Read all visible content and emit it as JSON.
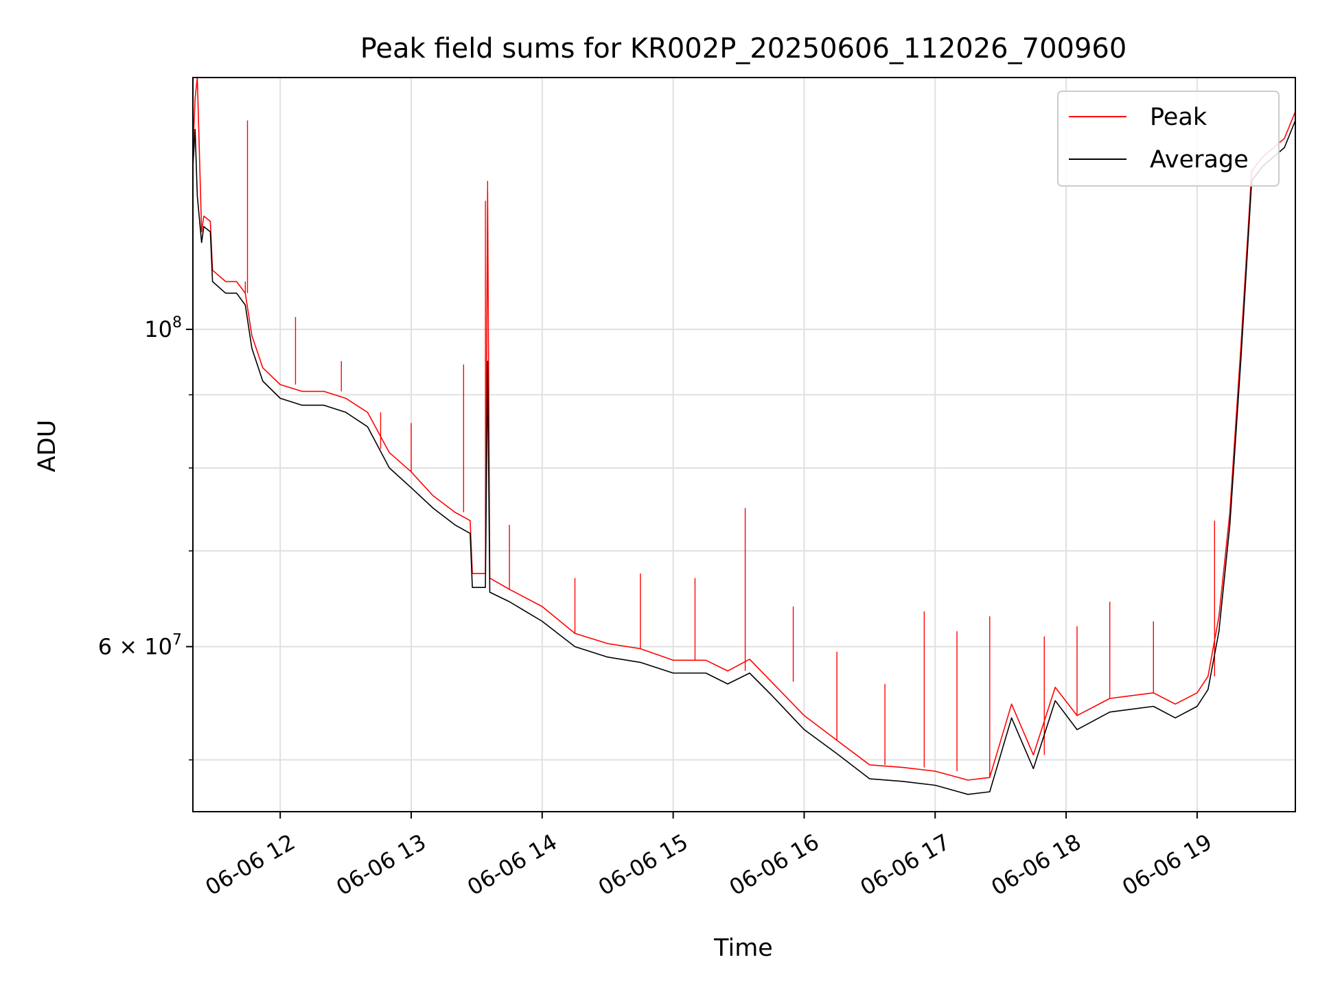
{
  "chart_data": {
    "type": "line",
    "title": "Peak field sums for KR002P_20250606_112026_700960",
    "xlabel": "Time",
    "ylabel": "ADU",
    "y_scale": "log",
    "xlim": [
      "2025-06-06T11:20",
      "2025-06-06T19:45"
    ],
    "ylim": [
      46000000,
      150000000
    ],
    "x_ticks": [
      {
        "label": "06-06 12",
        "time": "2025-06-06T12:00"
      },
      {
        "label": "06-06 13",
        "time": "2025-06-06T13:00"
      },
      {
        "label": "06-06 14",
        "time": "2025-06-06T14:00"
      },
      {
        "label": "06-06 15",
        "time": "2025-06-06T15:00"
      },
      {
        "label": "06-06 16",
        "time": "2025-06-06T16:00"
      },
      {
        "label": "06-06 17",
        "time": "2025-06-06T17:00"
      },
      {
        "label": "06-06 18",
        "time": "2025-06-06T18:00"
      },
      {
        "label": "06-06 19",
        "time": "2025-06-06T19:00"
      }
    ],
    "y_ticks_major": [
      {
        "base": "10",
        "exp": "8",
        "mantissa": "",
        "value": 100000000
      },
      {
        "base": "10",
        "exp": "7",
        "mantissa": "6",
        "value": 60000000
      }
    ],
    "y_ticks_minor": [
      50000000,
      70000000,
      80000000,
      90000000
    ],
    "grid": true,
    "legend_position": "top-right",
    "series": [
      {
        "name": "Average",
        "color": "#000000",
        "points": [
          [
            "2025-06-06T11:20",
            130000000
          ],
          [
            "2025-06-06T11:21",
            138000000
          ],
          [
            "2025-06-06T11:22",
            124000000
          ],
          [
            "2025-06-06T11:24",
            115000000
          ],
          [
            "2025-06-06T11:25",
            118000000
          ],
          [
            "2025-06-06T11:28",
            117000000
          ],
          [
            "2025-06-06T11:29",
            108000000
          ],
          [
            "2025-06-06T11:35",
            106000000
          ],
          [
            "2025-06-06T11:40",
            106000000
          ],
          [
            "2025-06-06T11:44",
            104000000
          ],
          [
            "2025-06-06T11:47",
            97000000
          ],
          [
            "2025-06-06T11:52",
            92000000
          ],
          [
            "2025-06-06T12:00",
            89500000
          ],
          [
            "2025-06-06T12:10",
            88500000
          ],
          [
            "2025-06-06T12:20",
            88500000
          ],
          [
            "2025-06-06T12:30",
            87500000
          ],
          [
            "2025-06-06T12:40",
            85500000
          ],
          [
            "2025-06-06T12:50",
            80000000
          ],
          [
            "2025-06-06T13:00",
            77500000
          ],
          [
            "2025-06-06T13:10",
            75000000
          ],
          [
            "2025-06-06T13:20",
            73000000
          ],
          [
            "2025-06-06T13:27",
            72000000
          ],
          [
            "2025-06-06T13:28",
            66000000
          ],
          [
            "2025-06-06T13:34",
            66000000
          ],
          [
            "2025-06-06T13:35",
            95000000
          ],
          [
            "2025-06-06T13:36",
            65500000
          ],
          [
            "2025-06-06T13:45",
            64500000
          ],
          [
            "2025-06-06T14:00",
            62500000
          ],
          [
            "2025-06-06T14:15",
            60000000
          ],
          [
            "2025-06-06T14:30",
            59000000
          ],
          [
            "2025-06-06T14:45",
            58500000
          ],
          [
            "2025-06-06T15:00",
            57500000
          ],
          [
            "2025-06-06T15:15",
            57500000
          ],
          [
            "2025-06-06T15:25",
            56500000
          ],
          [
            "2025-06-06T15:35",
            57500000
          ],
          [
            "2025-06-06T15:45",
            55500000
          ],
          [
            "2025-06-06T16:00",
            52500000
          ],
          [
            "2025-06-06T16:15",
            50500000
          ],
          [
            "2025-06-06T16:30",
            48500000
          ],
          [
            "2025-06-06T16:45",
            48300000
          ],
          [
            "2025-06-06T17:00",
            48000000
          ],
          [
            "2025-06-06T17:15",
            47300000
          ],
          [
            "2025-06-06T17:25",
            47500000
          ],
          [
            "2025-06-06T17:35",
            53500000
          ],
          [
            "2025-06-06T17:45",
            49300000
          ],
          [
            "2025-06-06T17:55",
            55000000
          ],
          [
            "2025-06-06T18:05",
            52500000
          ],
          [
            "2025-06-06T18:20",
            54000000
          ],
          [
            "2025-06-06T18:40",
            54500000
          ],
          [
            "2025-06-06T18:50",
            53500000
          ],
          [
            "2025-06-06T19:00",
            54500000
          ],
          [
            "2025-06-06T19:05",
            56000000
          ],
          [
            "2025-06-06T19:10",
            61500000
          ],
          [
            "2025-06-06T19:15",
            73000000
          ],
          [
            "2025-06-06T19:20",
            95000000
          ],
          [
            "2025-06-06T19:25",
            127000000
          ],
          [
            "2025-06-06T19:30",
            130000000
          ],
          [
            "2025-06-06T19:40",
            134000000
          ],
          [
            "2025-06-06T19:45",
            140000000
          ]
        ]
      },
      {
        "name": "Peak",
        "color": "#ff0000",
        "points": [
          [
            "2025-06-06T11:20",
            133000000
          ],
          [
            "2025-06-06T11:21",
            145000000
          ],
          [
            "2025-06-06T11:22",
            150000000
          ],
          [
            "2025-06-06T11:24",
            117000000
          ],
          [
            "2025-06-06T11:25",
            120000000
          ],
          [
            "2025-06-06T11:28",
            119000000
          ],
          [
            "2025-06-06T11:29",
            110000000
          ],
          [
            "2025-06-06T11:35",
            108000000
          ],
          [
            "2025-06-06T11:40",
            108000000
          ],
          [
            "2025-06-06T11:44",
            106000000
          ],
          [
            "2025-06-06T11:47",
            99000000
          ],
          [
            "2025-06-06T11:52",
            94000000
          ],
          [
            "2025-06-06T12:00",
            91500000
          ],
          [
            "2025-06-06T12:10",
            90500000
          ],
          [
            "2025-06-06T12:20",
            90500000
          ],
          [
            "2025-06-06T12:30",
            89500000
          ],
          [
            "2025-06-06T12:40",
            87500000
          ],
          [
            "2025-06-06T12:50",
            82000000
          ],
          [
            "2025-06-06T13:00",
            79500000
          ],
          [
            "2025-06-06T13:10",
            76500000
          ],
          [
            "2025-06-06T13:20",
            74500000
          ],
          [
            "2025-06-06T13:27",
            73500000
          ],
          [
            "2025-06-06T13:28",
            67500000
          ],
          [
            "2025-06-06T13:34",
            67500000
          ],
          [
            "2025-06-06T13:35",
            125000000
          ],
          [
            "2025-06-06T13:36",
            67000000
          ],
          [
            "2025-06-06T13:45",
            65800000
          ],
          [
            "2025-06-06T14:00",
            64000000
          ],
          [
            "2025-06-06T14:15",
            61300000
          ],
          [
            "2025-06-06T14:30",
            60300000
          ],
          [
            "2025-06-06T14:45",
            59800000
          ],
          [
            "2025-06-06T15:00",
            58700000
          ],
          [
            "2025-06-06T15:15",
            58700000
          ],
          [
            "2025-06-06T15:25",
            57700000
          ],
          [
            "2025-06-06T15:35",
            58800000
          ],
          [
            "2025-06-06T15:45",
            56700000
          ],
          [
            "2025-06-06T16:00",
            53700000
          ],
          [
            "2025-06-06T16:15",
            51600000
          ],
          [
            "2025-06-06T16:30",
            49600000
          ],
          [
            "2025-06-06T16:45",
            49400000
          ],
          [
            "2025-06-06T17:00",
            49100000
          ],
          [
            "2025-06-06T17:15",
            48400000
          ],
          [
            "2025-06-06T17:25",
            48600000
          ],
          [
            "2025-06-06T17:35",
            54700000
          ],
          [
            "2025-06-06T17:45",
            50400000
          ],
          [
            "2025-06-06T17:55",
            56200000
          ],
          [
            "2025-06-06T18:05",
            53700000
          ],
          [
            "2025-06-06T18:20",
            55200000
          ],
          [
            "2025-06-06T18:40",
            55700000
          ],
          [
            "2025-06-06T18:50",
            54700000
          ],
          [
            "2025-06-06T19:00",
            55700000
          ],
          [
            "2025-06-06T19:05",
            57200000
          ],
          [
            "2025-06-06T19:10",
            63000000
          ],
          [
            "2025-06-06T19:15",
            74500000
          ],
          [
            "2025-06-06T19:20",
            97000000
          ],
          [
            "2025-06-06T19:25",
            129000000
          ],
          [
            "2025-06-06T19:30",
            132000000
          ],
          [
            "2025-06-06T19:40",
            136000000
          ],
          [
            "2025-06-06T19:45",
            142000000
          ]
        ],
        "spikes": [
          [
            "2025-06-06T11:44",
            108000000
          ],
          [
            "2025-06-06T11:45",
            140000000
          ],
          [
            "2025-06-06T12:07",
            102000000
          ],
          [
            "2025-06-06T12:28",
            95000000
          ],
          [
            "2025-06-06T12:46",
            82500000
          ],
          [
            "2025-06-06T13:00",
            86000000
          ],
          [
            "2025-06-06T13:24",
            94500000
          ],
          [
            "2025-06-06T13:34",
            123000000
          ],
          [
            "2025-06-06T13:35",
            127000000
          ],
          [
            "2025-06-06T13:45",
            73000000
          ],
          [
            "2025-06-06T14:15",
            67000000
          ],
          [
            "2025-06-06T14:45",
            67500000
          ],
          [
            "2025-06-06T15:10",
            67000000
          ],
          [
            "2025-06-06T15:33",
            75000000
          ],
          [
            "2025-06-06T15:55",
            64000000
          ],
          [
            "2025-06-06T16:15",
            59500000
          ],
          [
            "2025-06-06T16:37",
            56500000
          ],
          [
            "2025-06-06T16:55",
            63500000
          ],
          [
            "2025-06-06T17:10",
            61500000
          ],
          [
            "2025-06-06T17:25",
            63000000
          ],
          [
            "2025-06-06T17:50",
            61000000
          ],
          [
            "2025-06-06T18:05",
            62000000
          ],
          [
            "2025-06-06T18:20",
            64500000
          ],
          [
            "2025-06-06T18:40",
            62500000
          ],
          [
            "2025-06-06T19:08",
            73500000
          ]
        ]
      }
    ]
  }
}
